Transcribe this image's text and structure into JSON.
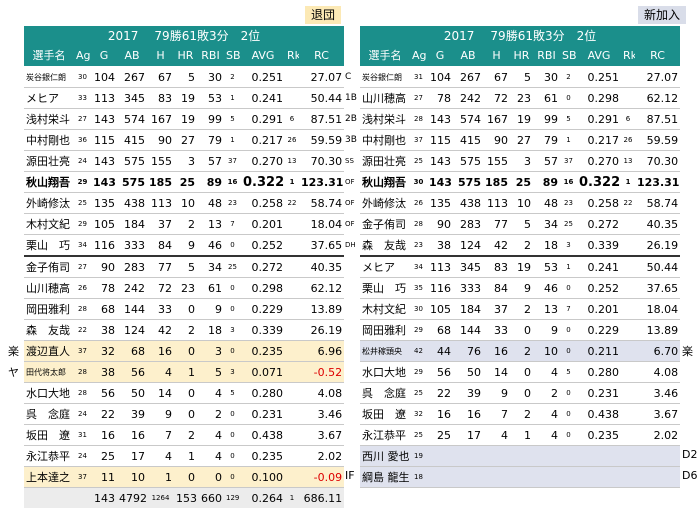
{
  "left": {
    "tag": "退団",
    "season": "2017",
    "record": "79勝61敗3分",
    "rank": "2位",
    "headers": [
      "選手名",
      "Age",
      "G",
      "AB",
      "H",
      "HR",
      "RBI",
      "SB",
      "AVG",
      "Rk",
      "RC"
    ],
    "rows": [
      {
        "name": "炭谷銀仁朗",
        "age": "30",
        "g": "104",
        "ab": "267",
        "h": "67",
        "hr": "5",
        "rbi": "30",
        "sb": "2",
        "avg": "0.251",
        "rk": "",
        "rc": "27.07",
        "pos": "C",
        "tiny": true
      },
      {
        "name": "メヒア",
        "age": "33",
        "g": "113",
        "ab": "345",
        "h": "83",
        "hr": "19",
        "rbi": "53",
        "sb": "1",
        "avg": "0.241",
        "rk": "",
        "rc": "50.44",
        "pos": "1B"
      },
      {
        "name": "浅村栄斗",
        "age": "27",
        "g": "143",
        "ab": "574",
        "h": "167",
        "hr": "19",
        "rbi": "99",
        "sb": "5",
        "avg": "0.291",
        "rk": "6",
        "rc": "87.51",
        "pos": "2B"
      },
      {
        "name": "中村剛也",
        "age": "36",
        "g": "115",
        "ab": "415",
        "h": "90",
        "hr": "27",
        "rbi": "79",
        "sb": "1",
        "avg": "0.217",
        "rk": "26",
        "rc": "59.59",
        "pos": "3B"
      },
      {
        "name": "源田壮亮",
        "age": "24",
        "g": "143",
        "ab": "575",
        "h": "155",
        "hr": "3",
        "rbi": "57",
        "sb": "37",
        "avg": "0.270",
        "rk": "13",
        "rc": "70.30",
        "pos": "SS"
      },
      {
        "name": "秋山翔吾",
        "age": "29",
        "g": "143",
        "ab": "575",
        "h": "185",
        "hr": "25",
        "rbi": "89",
        "sb": "16",
        "avg": "0.322",
        "rk": "1",
        "rc": "123.31",
        "pos": "OF",
        "bold": true
      },
      {
        "name": "外崎修汰",
        "age": "25",
        "g": "135",
        "ab": "438",
        "h": "113",
        "hr": "10",
        "rbi": "48",
        "sb": "23",
        "avg": "0.258",
        "rk": "22",
        "rc": "58.74",
        "pos": "OF"
      },
      {
        "name": "木村文紀",
        "age": "29",
        "g": "105",
        "ab": "184",
        "h": "37",
        "hr": "2",
        "rbi": "13",
        "sb": "7",
        "avg": "0.201",
        "rk": "",
        "rc": "18.04",
        "pos": "OF"
      },
      {
        "name": "栗山　巧",
        "age": "34",
        "g": "116",
        "ab": "333",
        "h": "84",
        "hr": "9",
        "rbi": "46",
        "sb": "0",
        "avg": "0.252",
        "rk": "",
        "rc": "37.65",
        "pos": "DH"
      },
      {
        "name": "金子侑司",
        "age": "27",
        "g": "90",
        "ab": "283",
        "h": "77",
        "hr": "5",
        "rbi": "34",
        "sb": "25",
        "avg": "0.272",
        "rk": "",
        "rc": "40.35",
        "pos": "",
        "sep": true
      },
      {
        "name": "山川穂高",
        "age": "26",
        "g": "78",
        "ab": "242",
        "h": "72",
        "hr": "23",
        "rbi": "61",
        "sb": "0",
        "avg": "0.298",
        "rk": "",
        "rc": "62.12",
        "pos": ""
      },
      {
        "name": "岡田雅利",
        "age": "28",
        "g": "68",
        "ab": "144",
        "h": "33",
        "hr": "0",
        "rbi": "9",
        "sb": "0",
        "avg": "0.229",
        "rk": "",
        "rc": "13.89",
        "pos": ""
      },
      {
        "name": "森　友哉",
        "age": "22",
        "g": "38",
        "ab": "124",
        "h": "42",
        "hr": "2",
        "rbi": "18",
        "sb": "3",
        "avg": "0.339",
        "rk": "",
        "rc": "26.19",
        "pos": ""
      },
      {
        "name": "渡辺直人",
        "age": "37",
        "g": "32",
        "ab": "68",
        "h": "16",
        "hr": "0",
        "rbi": "3",
        "sb": "0",
        "avg": "0.235",
        "rk": "",
        "rc": "6.96",
        "pos": "",
        "hl": true,
        "side": "楽"
      },
      {
        "name": "田代将太郎",
        "age": "28",
        "g": "38",
        "ab": "56",
        "h": "4",
        "hr": "1",
        "rbi": "5",
        "sb": "3",
        "avg": "0.071",
        "rk": "",
        "rc": "-0.52",
        "pos": "",
        "hl": true,
        "side": "ヤ",
        "tiny": true,
        "neg": true
      },
      {
        "name": "水口大地",
        "age": "28",
        "g": "56",
        "ab": "50",
        "h": "14",
        "hr": "0",
        "rbi": "4",
        "sb": "5",
        "avg": "0.280",
        "rk": "",
        "rc": "4.08",
        "pos": ""
      },
      {
        "name": "呉　念庭",
        "age": "24",
        "g": "22",
        "ab": "39",
        "h": "9",
        "hr": "0",
        "rbi": "2",
        "sb": "0",
        "avg": "0.231",
        "rk": "",
        "rc": "3.46",
        "pos": ""
      },
      {
        "name": "坂田　遼",
        "age": "31",
        "g": "16",
        "ab": "16",
        "h": "7",
        "hr": "2",
        "rbi": "4",
        "sb": "0",
        "avg": "0.438",
        "rk": "",
        "rc": "3.67",
        "pos": ""
      },
      {
        "name": "永江恭平",
        "age": "24",
        "g": "25",
        "ab": "17",
        "h": "4",
        "hr": "1",
        "rbi": "4",
        "sb": "0",
        "avg": "0.235",
        "rk": "",
        "rc": "2.02",
        "pos": ""
      },
      {
        "name": "上本達之",
        "age": "37",
        "g": "11",
        "ab": "10",
        "h": "1",
        "hr": "0",
        "rbi": "0",
        "sb": "0",
        "avg": "0.100",
        "rk": "",
        "rc": "-0.09",
        "pos": "IF",
        "hl": true,
        "neg": true
      }
    ],
    "total": {
      "g": "143",
      "ab": "4792",
      "h": "1264",
      "hr": "153",
      "rbi": "660",
      "sb": "129",
      "avg": "0.264",
      "rk": "1",
      "rc": "686.11"
    }
  },
  "right": {
    "tag": "新加入",
    "season": "2017",
    "record": "79勝61敗3分",
    "rank": "2位",
    "headers": [
      "選手名",
      "Age",
      "G",
      "AB",
      "H",
      "HR",
      "RBI",
      "SB",
      "AVG",
      "Rk",
      "RC"
    ],
    "rows": [
      {
        "name": "炭谷銀仁朗",
        "age": "31",
        "g": "104",
        "ab": "267",
        "h": "67",
        "hr": "5",
        "rbi": "30",
        "sb": "2",
        "avg": "0.251",
        "rk": "",
        "rc": "27.07",
        "tiny": true
      },
      {
        "name": "山川穂高",
        "age": "27",
        "g": "78",
        "ab": "242",
        "h": "72",
        "hr": "23",
        "rbi": "61",
        "sb": "0",
        "avg": "0.298",
        "rk": "",
        "rc": "62.12"
      },
      {
        "name": "浅村栄斗",
        "age": "28",
        "g": "143",
        "ab": "574",
        "h": "167",
        "hr": "19",
        "rbi": "99",
        "sb": "5",
        "avg": "0.291",
        "rk": "6",
        "rc": "87.51"
      },
      {
        "name": "中村剛也",
        "age": "37",
        "g": "115",
        "ab": "415",
        "h": "90",
        "hr": "27",
        "rbi": "79",
        "sb": "1",
        "avg": "0.217",
        "rk": "26",
        "rc": "59.59"
      },
      {
        "name": "源田壮亮",
        "age": "25",
        "g": "143",
        "ab": "575",
        "h": "155",
        "hr": "3",
        "rbi": "57",
        "sb": "37",
        "avg": "0.270",
        "rk": "13",
        "rc": "70.30"
      },
      {
        "name": "秋山翔吾",
        "age": "30",
        "g": "143",
        "ab": "575",
        "h": "185",
        "hr": "25",
        "rbi": "89",
        "sb": "16",
        "avg": "0.322",
        "rk": "1",
        "rc": "123.31",
        "bold": true
      },
      {
        "name": "外崎修汰",
        "age": "26",
        "g": "135",
        "ab": "438",
        "h": "113",
        "hr": "10",
        "rbi": "48",
        "sb": "23",
        "avg": "0.258",
        "rk": "22",
        "rc": "58.74"
      },
      {
        "name": "金子侑司",
        "age": "28",
        "g": "90",
        "ab": "283",
        "h": "77",
        "hr": "5",
        "rbi": "34",
        "sb": "25",
        "avg": "0.272",
        "rk": "",
        "rc": "40.35"
      },
      {
        "name": "森　友哉",
        "age": "23",
        "g": "38",
        "ab": "124",
        "h": "42",
        "hr": "2",
        "rbi": "18",
        "sb": "3",
        "avg": "0.339",
        "rk": "",
        "rc": "26.19"
      },
      {
        "name": "メヒア",
        "age": "34",
        "g": "113",
        "ab": "345",
        "h": "83",
        "hr": "19",
        "rbi": "53",
        "sb": "1",
        "avg": "0.241",
        "rk": "",
        "rc": "50.44",
        "sep": true
      },
      {
        "name": "栗山　巧",
        "age": "35",
        "g": "116",
        "ab": "333",
        "h": "84",
        "hr": "9",
        "rbi": "46",
        "sb": "0",
        "avg": "0.252",
        "rk": "",
        "rc": "37.65"
      },
      {
        "name": "木村文紀",
        "age": "30",
        "g": "105",
        "ab": "184",
        "h": "37",
        "hr": "2",
        "rbi": "13",
        "sb": "7",
        "avg": "0.201",
        "rk": "",
        "rc": "18.04"
      },
      {
        "name": "岡田雅利",
        "age": "29",
        "g": "68",
        "ab": "144",
        "h": "33",
        "hr": "0",
        "rbi": "9",
        "sb": "0",
        "avg": "0.229",
        "rk": "",
        "rc": "13.89"
      },
      {
        "name": "松井稼頭央",
        "age": "42",
        "g": "44",
        "ab": "76",
        "h": "16",
        "hr": "2",
        "rbi": "10",
        "sb": "0",
        "avg": "0.211",
        "rk": "",
        "rc": "6.70",
        "hl": true,
        "side": "楽",
        "tiny": true
      },
      {
        "name": "水口大地",
        "age": "29",
        "g": "56",
        "ab": "50",
        "h": "14",
        "hr": "0",
        "rbi": "4",
        "sb": "5",
        "avg": "0.280",
        "rk": "",
        "rc": "4.08"
      },
      {
        "name": "呉　念庭",
        "age": "25",
        "g": "22",
        "ab": "39",
        "h": "9",
        "hr": "0",
        "rbi": "2",
        "sb": "0",
        "avg": "0.231",
        "rk": "",
        "rc": "3.46"
      },
      {
        "name": "坂田　遼",
        "age": "32",
        "g": "16",
        "ab": "16",
        "h": "7",
        "hr": "2",
        "rbi": "4",
        "sb": "0",
        "avg": "0.438",
        "rk": "",
        "rc": "3.67"
      },
      {
        "name": "永江恭平",
        "age": "25",
        "g": "25",
        "ab": "17",
        "h": "4",
        "hr": "1",
        "rbi": "4",
        "sb": "0",
        "avg": "0.235",
        "rk": "",
        "rc": "2.02"
      },
      {
        "name": "西川 愛也",
        "age": "19",
        "g": "",
        "ab": "",
        "h": "",
        "hr": "",
        "rbi": "",
        "sb": "",
        "avg": "",
        "rk": "",
        "rc": "",
        "hl": true,
        "side": "D2"
      },
      {
        "name": "綱島 龍生",
        "age": "18",
        "g": "",
        "ab": "",
        "h": "",
        "hr": "",
        "rbi": "",
        "sb": "",
        "avg": "",
        "rk": "",
        "rc": "",
        "hl": true,
        "side": "D6"
      }
    ]
  },
  "colors": {
    "header": "#1b8f8b",
    "left_highlight": "#fdf0cc",
    "right_highlight": "#dfe2ee",
    "negative": "#dd0000",
    "total_bg": "#ececec"
  }
}
